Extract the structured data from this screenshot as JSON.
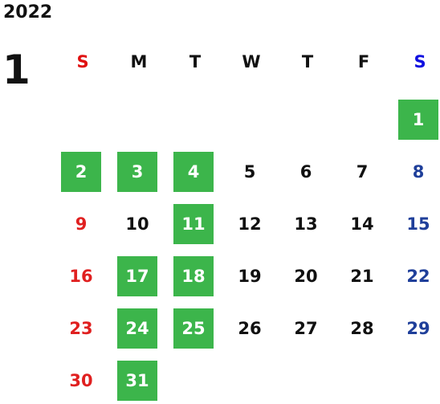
{
  "calendar": {
    "year": "2022",
    "month": "1",
    "weekdays": [
      "S",
      "M",
      "T",
      "W",
      "T",
      "F",
      "S"
    ],
    "colors": {
      "holiday_bg": "#3cb54b",
      "sunday": "#e02020",
      "saturday": "#1f3f9a",
      "weekday": "#111111",
      "on_holiday_text": "#ffffff",
      "header_sunday": "#e01010",
      "header_saturday": "#1010e0"
    },
    "first_weekday_index": 6,
    "days_in_month": 31,
    "highlighted_days": [
      1,
      2,
      3,
      4,
      11,
      17,
      18,
      24,
      25,
      31
    ]
  }
}
